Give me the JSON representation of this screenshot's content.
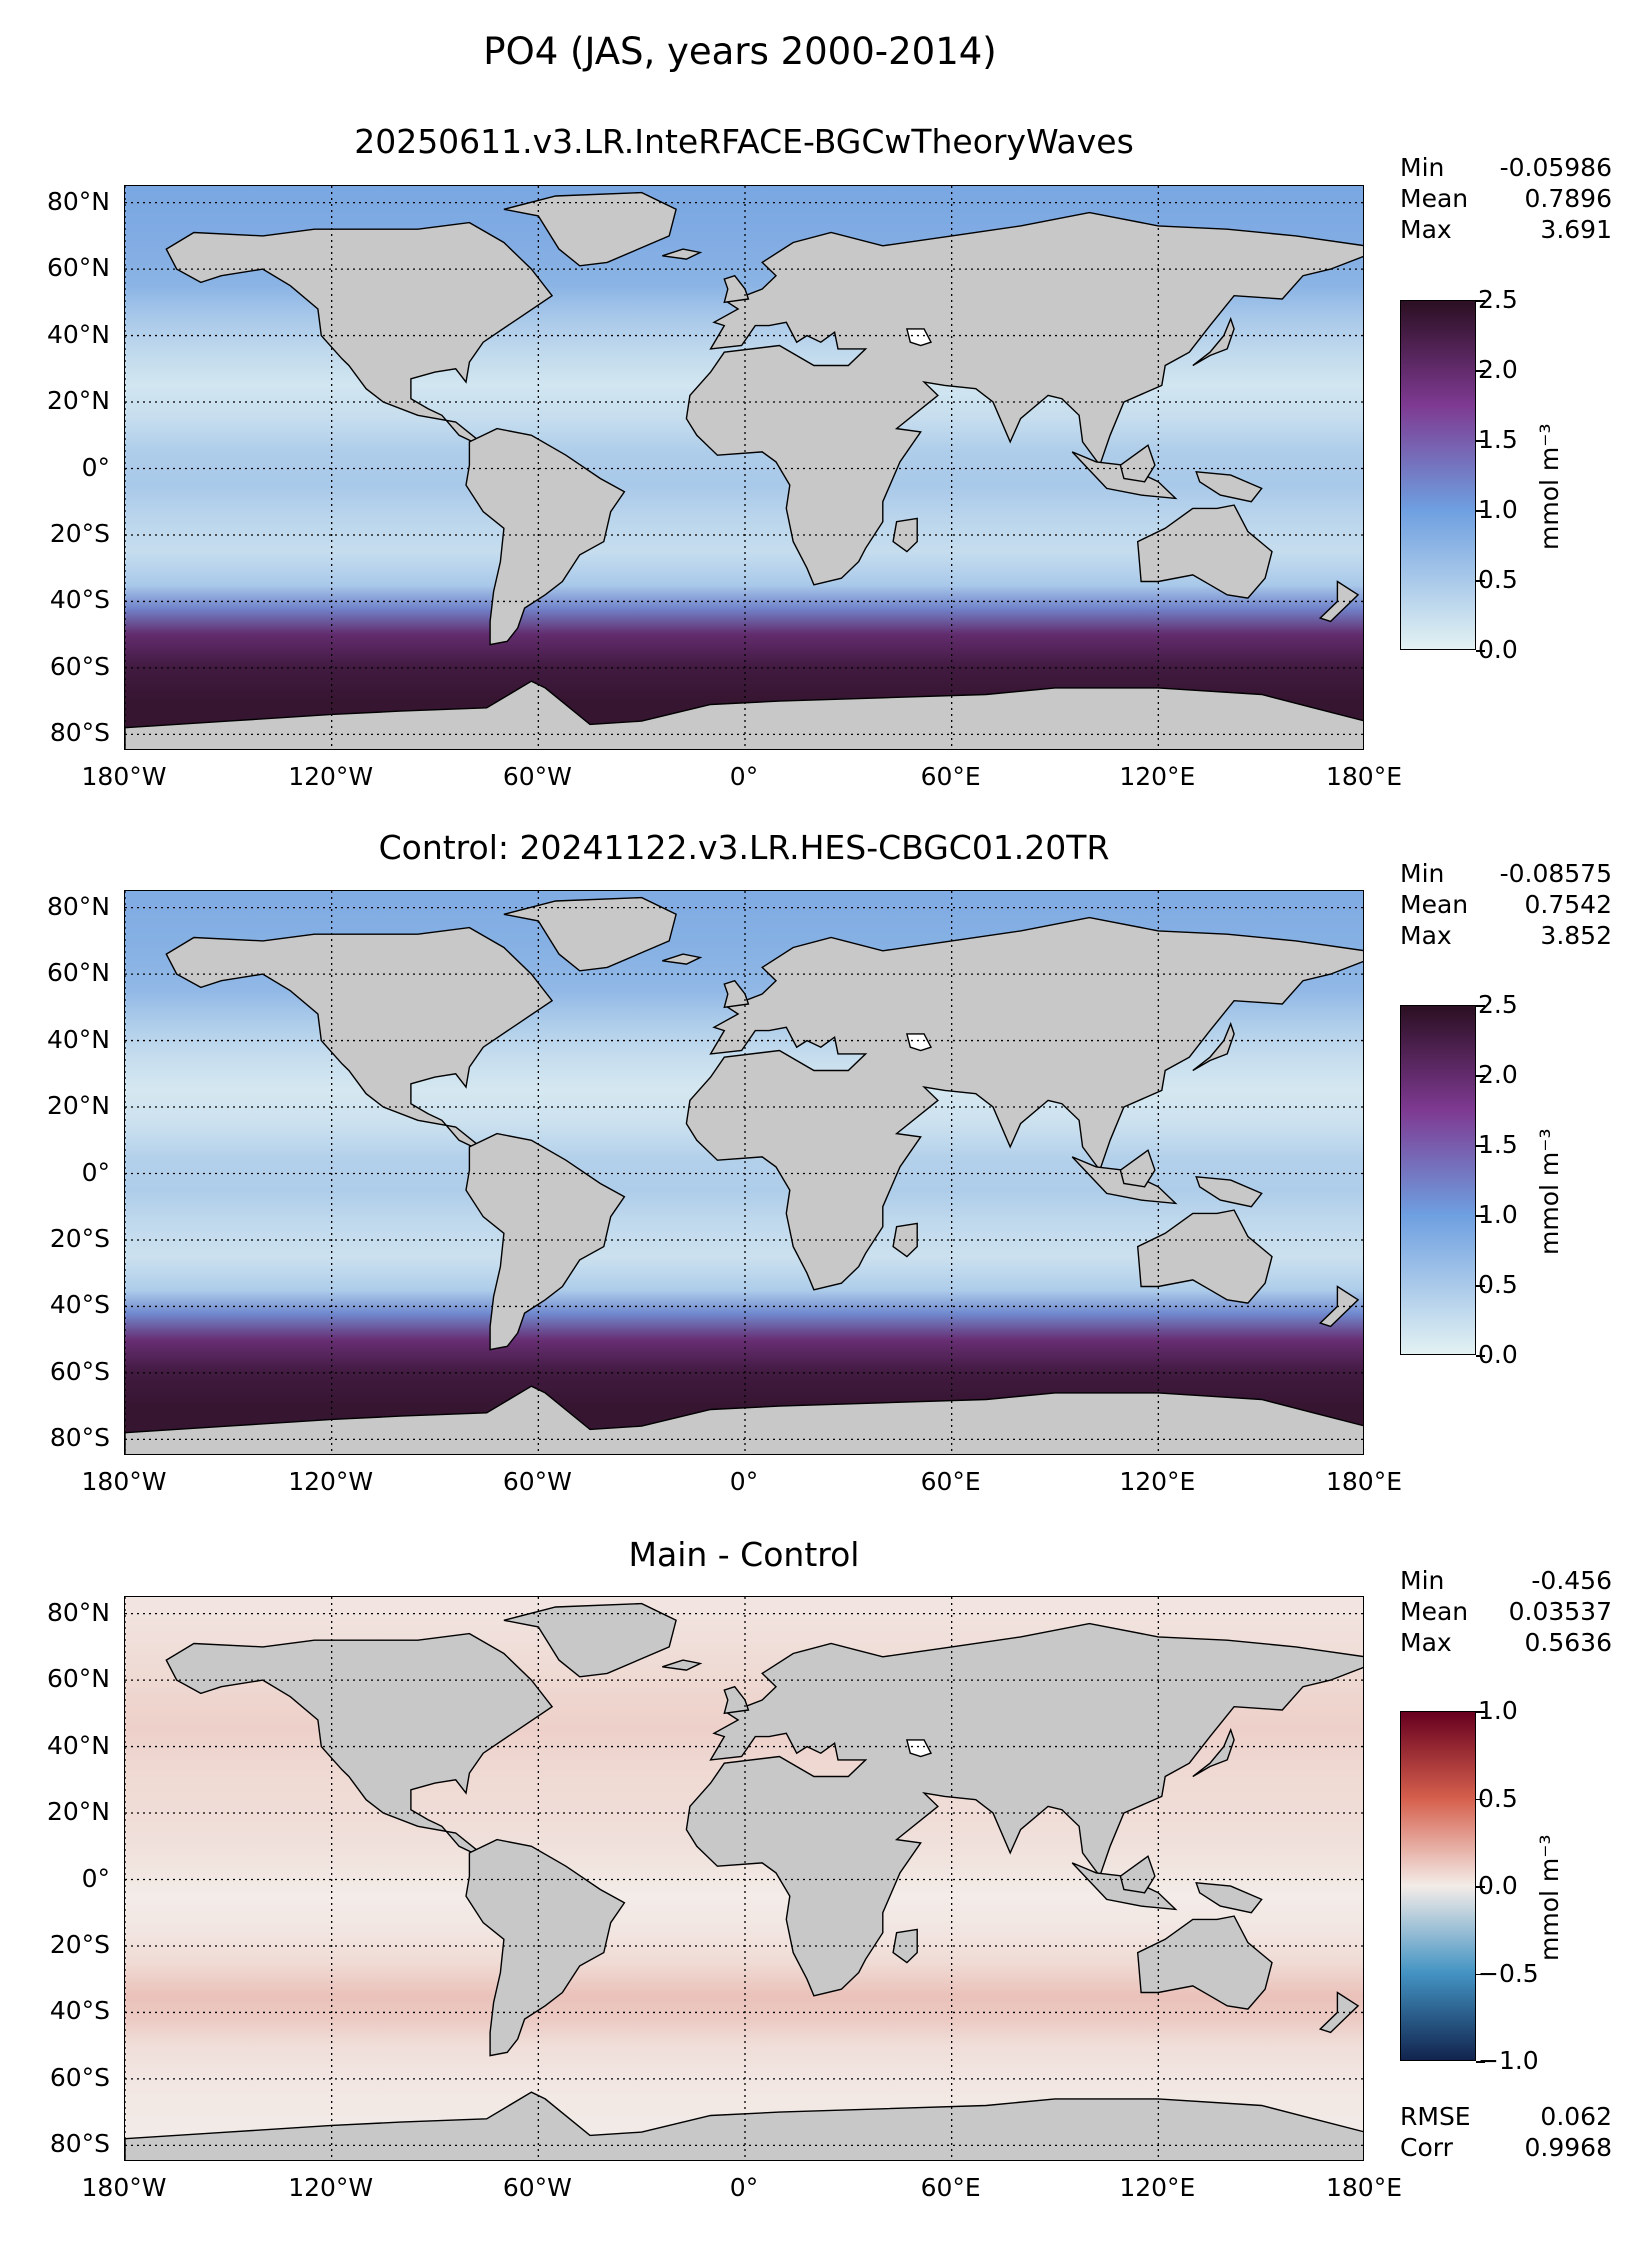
{
  "suptitle": "PO4 (JAS, years 2000-2014)",
  "panels": [
    {
      "title": "20250611.v3.LR.InteRFACE-BGCwTheoryWaves",
      "stats": {
        "min_label": "Min",
        "min": "-0.05986",
        "mean_label": "Mean",
        "mean": "0.7896",
        "max_label": "Max",
        "max": "3.691"
      },
      "colorbar": {
        "ticks": [
          "2.5",
          "2.0",
          "1.5",
          "1.0",
          "0.5",
          "0.0"
        ],
        "unit": "mmol m⁻³"
      }
    },
    {
      "title": "Control: 20241122.v3.LR.HES-CBGC01.20TR",
      "stats": {
        "min_label": "Min",
        "min": "-0.08575",
        "mean_label": "Mean",
        "mean": "0.7542",
        "max_label": "Max",
        "max": "3.852"
      },
      "colorbar": {
        "ticks": [
          "2.5",
          "2.0",
          "1.5",
          "1.0",
          "0.5",
          "0.0"
        ],
        "unit": "mmol m⁻³"
      }
    },
    {
      "title": "Main - Control",
      "stats": {
        "min_label": "Min",
        "min": "-0.456",
        "mean_label": "Mean",
        "mean": "0.03537",
        "max_label": "Max",
        "max": "0.5636"
      },
      "colorbar": {
        "ticks": [
          "1.0",
          "0.5",
          "0.0",
          "−0.5",
          "−1.0"
        ],
        "unit": "mmol m⁻³"
      },
      "metrics": {
        "rmse_label": "RMSE",
        "rmse": "0.062",
        "corr_label": "Corr",
        "corr": "0.9968"
      }
    }
  ],
  "lat_labels": [
    "80°N",
    "60°N",
    "40°N",
    "20°N",
    "0°",
    "20°S",
    "40°S",
    "60°S",
    "80°S"
  ],
  "lon_labels": [
    "180°W",
    "120°W",
    "60°W",
    "0°",
    "60°E",
    "120°E",
    "180°E"
  ],
  "colors": {
    "land": "#c8c8c8",
    "seq_low": "#e3f2f3",
    "seq_mid": "#6e9fe0",
    "seq_purple": "#7e3a92",
    "seq_high": "#2b0f22",
    "div_low": "#11244e",
    "div_mid": "#f3ece8",
    "div_high": "#67001f"
  },
  "chart_data": [
    {
      "type": "heatmap",
      "title": "20250611.v3.LR.InteRFACE-BGCwTheoryWaves",
      "lat_ticks": [
        80,
        60,
        40,
        20,
        0,
        -20,
        -40,
        -60,
        -80
      ],
      "lon_ticks": [
        -180,
        -120,
        -60,
        0,
        60,
        120,
        180
      ],
      "ylim": [
        -85,
        85
      ],
      "xlim": [
        -180,
        180
      ],
      "color_range": [
        0.0,
        2.5
      ],
      "colorbar_label": "mmol m⁻³",
      "zonal_profile": {
        "lat": [
          85,
          70,
          55,
          45,
          35,
          25,
          15,
          5,
          -5,
          -15,
          -25,
          -35,
          -42,
          -50,
          -60,
          -70,
          -80
        ],
        "value": [
          0.9,
          0.85,
          0.75,
          0.5,
          0.3,
          0.15,
          0.25,
          0.45,
          0.5,
          0.35,
          0.25,
          0.5,
          1.2,
          2.0,
          2.3,
          2.4,
          2.4
        ]
      },
      "min": -0.05986,
      "mean": 0.7896,
      "max": 3.691,
      "grid": true
    },
    {
      "type": "heatmap",
      "title": "Control: 20241122.v3.LR.HES-CBGC01.20TR",
      "lat_ticks": [
        80,
        60,
        40,
        20,
        0,
        -20,
        -40,
        -60,
        -80
      ],
      "lon_ticks": [
        -180,
        -120,
        -60,
        0,
        60,
        120,
        180
      ],
      "ylim": [
        -85,
        85
      ],
      "xlim": [
        -180,
        180
      ],
      "color_range": [
        0.0,
        2.5
      ],
      "colorbar_label": "mmol m⁻³",
      "zonal_profile": {
        "lat": [
          85,
          70,
          55,
          45,
          35,
          25,
          15,
          5,
          -5,
          -15,
          -25,
          -35,
          -42,
          -50,
          -60,
          -70,
          -80
        ],
        "value": [
          0.85,
          0.8,
          0.7,
          0.45,
          0.25,
          0.12,
          0.2,
          0.4,
          0.45,
          0.3,
          0.2,
          0.45,
          1.15,
          1.95,
          2.3,
          2.4,
          2.4
        ]
      },
      "min": -0.08575,
      "mean": 0.7542,
      "max": 3.852,
      "grid": true
    },
    {
      "type": "heatmap",
      "title": "Main - Control",
      "lat_ticks": [
        80,
        60,
        40,
        20,
        0,
        -20,
        -40,
        -60,
        -80
      ],
      "lon_ticks": [
        -180,
        -120,
        -60,
        0,
        60,
        120,
        180
      ],
      "ylim": [
        -85,
        85
      ],
      "xlim": [
        -180,
        180
      ],
      "color_range": [
        -1.0,
        1.0
      ],
      "colorbar_label": "mmol m⁻³",
      "zonal_profile": {
        "lat": [
          85,
          70,
          55,
          45,
          35,
          25,
          15,
          5,
          -5,
          -15,
          -25,
          -35,
          -42,
          -50,
          -60,
          -70,
          -80
        ],
        "value": [
          0.02,
          0.05,
          0.08,
          0.1,
          0.07,
          0.06,
          0.05,
          0.03,
          0.0,
          0.02,
          0.06,
          0.15,
          0.12,
          0.05,
          0.02,
          0.01,
          0.0
        ]
      },
      "min": -0.456,
      "mean": 0.03537,
      "max": 0.5636,
      "rmse": 0.062,
      "corr": 0.9968,
      "grid": true
    }
  ]
}
